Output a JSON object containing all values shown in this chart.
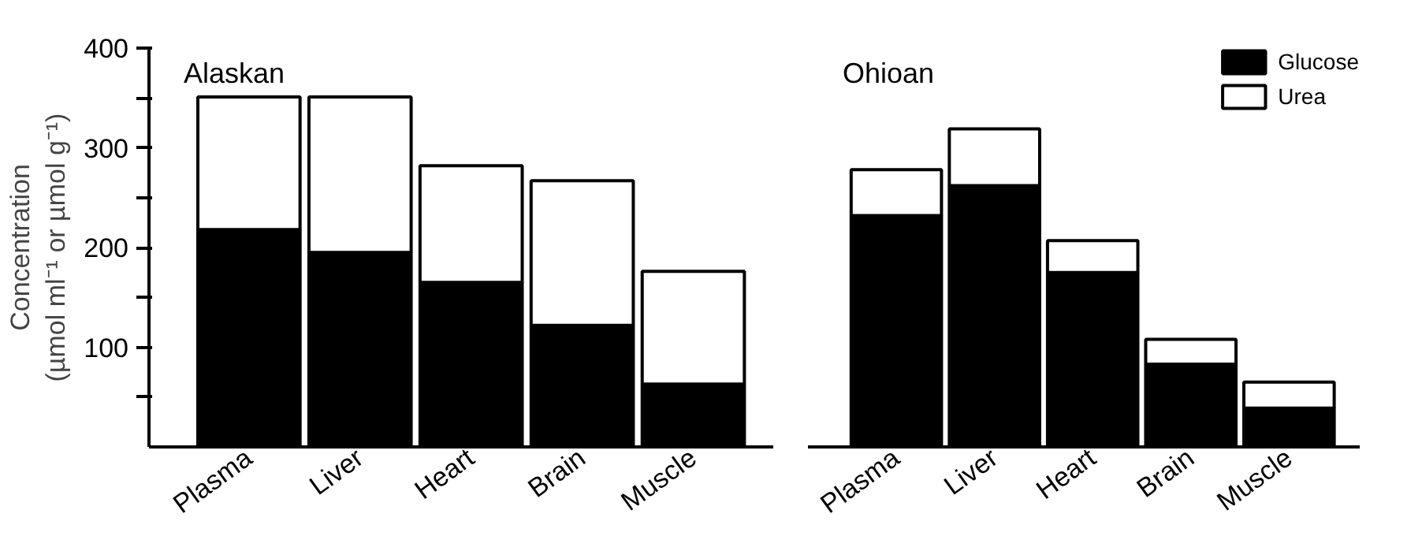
{
  "chart_data": [
    {
      "type": "bar",
      "title": "Alaskan",
      "ylabel": "Concentration\n(µmol ml⁻¹ or µmol g⁻¹)",
      "categories": [
        "Plasma",
        "Liver",
        "Heart",
        "Brain",
        "Muscle"
      ],
      "stacked": true,
      "series": [
        {
          "color": "#000000",
          "values": [
            218,
            195,
            165,
            122,
            63
          ]
        },
        {
          "color": "#ffffff",
          "values": [
            133,
            156,
            117,
            145,
            113
          ]
        }
      ],
      "ylim": [
        0,
        400
      ],
      "yticks": [
        {
          "value": 50,
          "label": null
        },
        100,
        {
          "value": 150,
          "label": null
        },
        200,
        {
          "value": 250,
          "label": null
        },
        300,
        {
          "value": 350,
          "label": null
        },
        400
      ],
      "grid": false,
      "legend": false
    },
    {
      "type": "bar",
      "title": "Ohioan",
      "categories": [
        "Plasma",
        "Liver",
        "Heart",
        "Brain",
        "Muscle"
      ],
      "stacked": true,
      "series": [
        {
          "name": "Glucose",
          "color": "#000000",
          "values": [
            232,
            262,
            175,
            83,
            39
          ]
        },
        {
          "name": "Urea",
          "color": "#ffffff",
          "values": [
            46,
            57,
            32,
            25,
            26
          ]
        }
      ],
      "ylim": [
        0,
        400
      ],
      "tick_labels": "x",
      "grid": false,
      "legend": "top right"
    }
  ]
}
